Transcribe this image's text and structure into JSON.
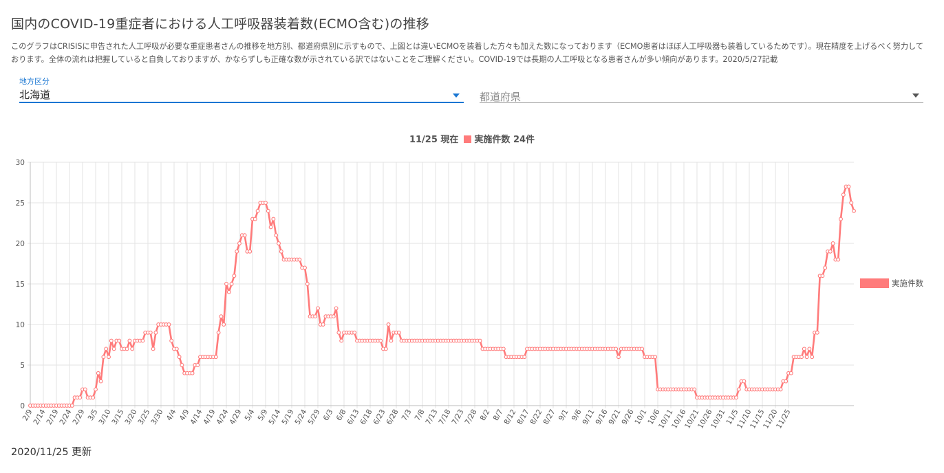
{
  "title": "国内のCOVID-19重症者における人工呼吸器装着数(ECMO含む)の推移",
  "description": "このグラフはCRISISに申告された人工呼吸が必要な重症患者さんの推移を地方別、都道府県別に示すもので、上図とは違いECMOを装着した方々も加えた数になっております（ECMO患者はほぼ人工呼吸器も装着しているためです）。現在精度を上げるべく努力しております。全体の流れは把握していると自負しておりますが、かならずしも正確な数が示されている訳ではないことをご理解ください。COVID-19では長期の人工呼吸となる患者さんが多い傾向があります。2020/5/27記載",
  "filters": {
    "region": {
      "label": "地方区分",
      "value": "北海道"
    },
    "prefecture": {
      "placeholder": "都道府県"
    }
  },
  "legend_top": {
    "date_text": "11/25 現在",
    "count_text": "実施件数 24件"
  },
  "updated": "2020/11/25 更新",
  "colors": {
    "series": "#ff7b7b",
    "accent": "#1976d2"
  },
  "chart_data": {
    "type": "line",
    "legend": "実施件数",
    "legend_position": "right",
    "grid": true,
    "ylim": [
      0,
      30
    ],
    "yticks": [
      0,
      5,
      10,
      15,
      20,
      25,
      30
    ],
    "x_start": "2/9",
    "x_end": "11/25",
    "tick_labels": [
      "2/9",
      "2/14",
      "2/19",
      "2/24",
      "2/29",
      "3/5",
      "3/10",
      "3/15",
      "3/20",
      "3/25",
      "3/30",
      "4/4",
      "4/9",
      "4/14",
      "4/19",
      "4/24",
      "4/29",
      "5/4",
      "5/9",
      "5/14",
      "5/19",
      "5/24",
      "5/29",
      "6/3",
      "6/8",
      "6/13",
      "6/18",
      "6/23",
      "6/28",
      "7/3",
      "7/8",
      "7/13",
      "7/18",
      "7/23",
      "7/28",
      "8/2",
      "8/7",
      "8/12",
      "8/17",
      "8/22",
      "8/27",
      "9/1",
      "9/6",
      "9/11",
      "9/16",
      "9/21",
      "9/26",
      "10/1",
      "10/6",
      "10/11",
      "10/16",
      "10/21",
      "10/26",
      "10/31",
      "11/5",
      "11/10",
      "11/15",
      "11/20",
      "11/25"
    ],
    "series": [
      {
        "name": "実施件数",
        "values": [
          0,
          0,
          0,
          0,
          0,
          0,
          0,
          0,
          0,
          0,
          0,
          0,
          0,
          0,
          0,
          0,
          0,
          1,
          1,
          1,
          2,
          2,
          1,
          1,
          1,
          2,
          4,
          3,
          6,
          7,
          6,
          8,
          7,
          8,
          8,
          7,
          7,
          7,
          8,
          7,
          8,
          8,
          8,
          8,
          9,
          9,
          9,
          7,
          9,
          10,
          10,
          10,
          10,
          10,
          8,
          7,
          7,
          6,
          5,
          4,
          4,
          4,
          4,
          5,
          5,
          6,
          6,
          6,
          6,
          6,
          6,
          6,
          9,
          11,
          10,
          15,
          14,
          15,
          16,
          19,
          20,
          21,
          21,
          19,
          19,
          23,
          23,
          24,
          25,
          25,
          25,
          24,
          22,
          23,
          21,
          20,
          19,
          18,
          18,
          18,
          18,
          18,
          18,
          18,
          17,
          17,
          15,
          11,
          11,
          11,
          12,
          10,
          10,
          11,
          11,
          11,
          11,
          12,
          9,
          8,
          9,
          9,
          9,
          9,
          9,
          8,
          8,
          8,
          8,
          8,
          8,
          8,
          8,
          8,
          8,
          7,
          7,
          10,
          8,
          9,
          9,
          9,
          8,
          8,
          8,
          8,
          8,
          8,
          8,
          8,
          8,
          8,
          8,
          8,
          8,
          8,
          8,
          8,
          8,
          8,
          8,
          8,
          8,
          8,
          8,
          8,
          8,
          8,
          8,
          8,
          8,
          8,
          8,
          7,
          7,
          7,
          7,
          7,
          7,
          7,
          7,
          7,
          6,
          6,
          6,
          6,
          6,
          6,
          6,
          6,
          7,
          7,
          7,
          7,
          7,
          7,
          7,
          7,
          7,
          7,
          7,
          7,
          7,
          7,
          7,
          7,
          7,
          7,
          7,
          7,
          7,
          7,
          7,
          7,
          7,
          7,
          7,
          7,
          7,
          7,
          7,
          7,
          7,
          7,
          7,
          6,
          7,
          7,
          7,
          7,
          7,
          7,
          7,
          7,
          7,
          6,
          6,
          6,
          6,
          6,
          2,
          2,
          2,
          2,
          2,
          2,
          2,
          2,
          2,
          2,
          2,
          2,
          2,
          2,
          2,
          1,
          1,
          1,
          1,
          1,
          1,
          1,
          1,
          1,
          1,
          1,
          1,
          1,
          1,
          1,
          1,
          2,
          3,
          3,
          2,
          2,
          2,
          2,
          2,
          2,
          2,
          2,
          2,
          2,
          2,
          2,
          2,
          2,
          3,
          3,
          4,
          4,
          6,
          6,
          6,
          6,
          7,
          6,
          7,
          6,
          9,
          9,
          16,
          16,
          17,
          19,
          19,
          20,
          18,
          18,
          23,
          26,
          27,
          27,
          25,
          24
        ]
      }
    ]
  }
}
